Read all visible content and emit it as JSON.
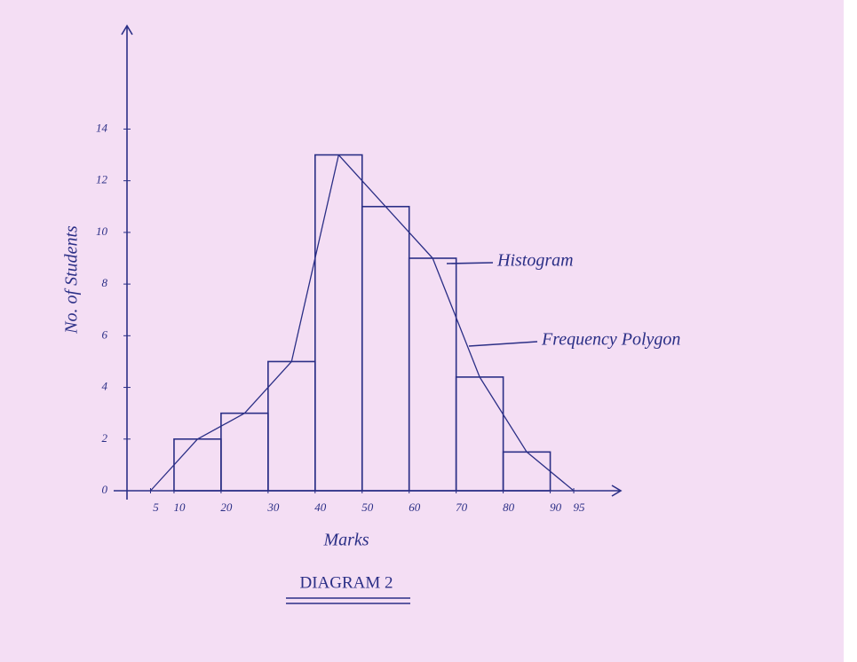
{
  "chart_data": {
    "type": "histogram",
    "bins": [
      10,
      20,
      30,
      40,
      50,
      60,
      70,
      80,
      90
    ],
    "values": [
      2,
      3,
      5,
      13,
      11,
      9,
      4.4,
      1.5
    ],
    "polygon": {
      "x": [
        5,
        15,
        25,
        35,
        45,
        55,
        65,
        75,
        85,
        95
      ],
      "values": [
        0,
        2,
        3,
        5,
        13,
        11,
        9,
        4.4,
        1.5,
        0
      ]
    },
    "xlim": [
      0,
      105
    ],
    "xticks": [
      5,
      10,
      20,
      30,
      40,
      50,
      60,
      70,
      80,
      90,
      95
    ],
    "ylim": [
      0,
      18
    ],
    "yticks": [
      0,
      2,
      4,
      6,
      8,
      10,
      12,
      14
    ],
    "x_label": "Marks",
    "y_label": "No. of Students",
    "caption": "DIAGRAM 2",
    "annotations": [
      "Histogram",
      "Frequency Polygon"
    ],
    "color": "#2b2f86",
    "grid": false
  }
}
